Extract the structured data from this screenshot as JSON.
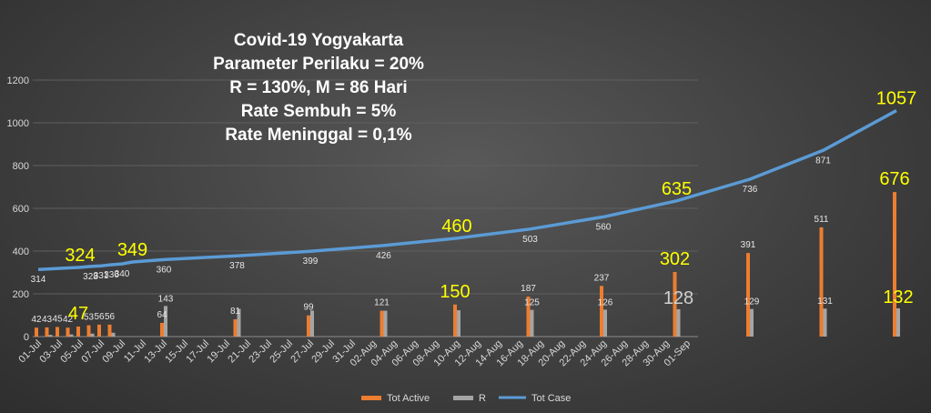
{
  "chart_data": {
    "type": "bar",
    "title_lines": [
      "Covid-19 Yogyakarta",
      "Parameter Perilaku = 20%",
      "R = 130%, M = 86 Hari",
      "Rate Sembuh = 5%",
      "Rate Meninggal = 0,1%"
    ],
    "ylim": [
      0,
      1200
    ],
    "yticks": [
      0,
      200,
      400,
      600,
      800,
      1000,
      1200
    ],
    "grid": true,
    "legend_position": "bottom",
    "colors": {
      "active": "#ED7D31",
      "r": "#A5A5A5",
      "total": "#5B9BD5",
      "highlight": "#FFFF00"
    },
    "x_labels": [
      "01-Jul",
      "03-Jul",
      "05-Jul",
      "07-Jul",
      "09-Jul",
      "11-Jul",
      "13-Jul",
      "15-Jul",
      "17-Jul",
      "19-Jul",
      "21-Jul",
      "23-Jul",
      "25-Jul",
      "27-Jul",
      "29-Jul",
      "31-Jul",
      "02-Aug",
      "04-Aug",
      "06-Aug",
      "08-Aug",
      "10-Aug",
      "12-Aug",
      "14-Aug",
      "16-Aug",
      "18-Aug",
      "20-Aug",
      "22-Aug",
      "24-Aug",
      "26-Aug",
      "28-Aug",
      "30-Aug",
      "01-Sep"
    ],
    "series": [
      {
        "name": "Tot Active",
        "type": "bar",
        "points": [
          {
            "day": 0,
            "value": 42
          },
          {
            "day": 1,
            "value": 43
          },
          {
            "day": 2,
            "value": 45
          },
          {
            "day": 3,
            "value": 42
          },
          {
            "day": 4,
            "value": 47
          },
          {
            "day": 5,
            "value": 53
          },
          {
            "day": 6,
            "value": 56
          },
          {
            "day": 7,
            "value": 56
          },
          {
            "day": 12,
            "value": 64
          },
          {
            "day": 19,
            "value": 81
          },
          {
            "day": 26,
            "value": 99
          },
          {
            "day": 33,
            "value": 121
          },
          {
            "day": 40,
            "value": 150
          },
          {
            "day": 47,
            "value": 187
          },
          {
            "day": 54,
            "value": 237
          },
          {
            "day": 61,
            "value": 302
          },
          {
            "day": 68,
            "value": 391
          },
          {
            "day": 75,
            "value": 511
          },
          {
            "day": 82,
            "value": 676
          }
        ]
      },
      {
        "name": "R",
        "type": "bar",
        "points": [
          {
            "day": 1,
            "value": 8
          },
          {
            "day": 3,
            "value": 10
          },
          {
            "day": 5,
            "value": 14
          },
          {
            "day": 7,
            "value": 18
          },
          {
            "day": 12,
            "value": 143
          },
          {
            "day": 19,
            "value": 130
          },
          {
            "day": 26,
            "value": 122
          },
          {
            "day": 33,
            "value": 121
          },
          {
            "day": 40,
            "value": 123
          },
          {
            "day": 47,
            "value": 125
          },
          {
            "day": 54,
            "value": 126
          },
          {
            "day": 61,
            "value": 128
          },
          {
            "day": 68,
            "value": 129
          },
          {
            "day": 75,
            "value": 131
          },
          {
            "day": 82,
            "value": 132
          }
        ]
      },
      {
        "name": "Tot Case",
        "type": "line",
        "points": [
          {
            "day": 0,
            "value": 314
          },
          {
            "day": 4,
            "value": 324
          },
          {
            "day": 5,
            "value": 328
          },
          {
            "day": 6,
            "value": 331
          },
          {
            "day": 7,
            "value": 336
          },
          {
            "day": 8,
            "value": 340
          },
          {
            "day": 9,
            "value": 349
          },
          {
            "day": 12,
            "value": 360
          },
          {
            "day": 19,
            "value": 378
          },
          {
            "day": 26,
            "value": 399
          },
          {
            "day": 33,
            "value": 426
          },
          {
            "day": 40,
            "value": 460
          },
          {
            "day": 47,
            "value": 503
          },
          {
            "day": 54,
            "value": 560
          },
          {
            "day": 61,
            "value": 635
          },
          {
            "day": 68,
            "value": 736
          },
          {
            "day": 75,
            "value": 871
          },
          {
            "day": 82,
            "value": 1057
          }
        ]
      }
    ],
    "labels": [
      {
        "text": "42",
        "day": 0,
        "value": 42,
        "series": "active"
      },
      {
        "text": "43",
        "day": 1,
        "value": 43,
        "series": "active"
      },
      {
        "text": "45",
        "day": 2,
        "value": 45,
        "series": "active"
      },
      {
        "text": "42",
        "day": 3,
        "value": 42,
        "series": "active"
      },
      {
        "text": "47",
        "day": 4,
        "value": 47,
        "series": "active",
        "highlight": true
      },
      {
        "text": "53",
        "day": 5,
        "value": 53,
        "series": "active"
      },
      {
        "text": "56",
        "day": 6,
        "value": 56,
        "series": "active"
      },
      {
        "text": "56",
        "day": 7,
        "value": 56,
        "series": "active"
      },
      {
        "text": "64",
        "day": 12,
        "value": 64,
        "series": "active"
      },
      {
        "text": "143",
        "day": 12,
        "value": 143,
        "series": "r"
      },
      {
        "text": "81",
        "day": 19,
        "value": 81,
        "series": "active"
      },
      {
        "text": "99",
        "day": 26,
        "value": 99,
        "series": "active"
      },
      {
        "text": "121",
        "day": 33,
        "value": 121,
        "series": "active"
      },
      {
        "text": "150",
        "day": 40,
        "value": 150,
        "series": "active",
        "highlight": true
      },
      {
        "text": "187",
        "day": 47,
        "value": 187,
        "series": "active"
      },
      {
        "text": "125",
        "day": 47,
        "value": 125,
        "series": "r"
      },
      {
        "text": "237",
        "day": 54,
        "value": 237,
        "series": "active"
      },
      {
        "text": "126",
        "day": 54,
        "value": 126,
        "series": "r"
      },
      {
        "text": "302",
        "day": 61,
        "value": 302,
        "series": "active",
        "highlight": true
      },
      {
        "text": "128",
        "day": 61,
        "value": 128,
        "series": "r",
        "big": true
      },
      {
        "text": "391",
        "day": 68,
        "value": 391,
        "series": "active"
      },
      {
        "text": "129",
        "day": 68,
        "value": 129,
        "series": "r"
      },
      {
        "text": "511",
        "day": 75,
        "value": 511,
        "series": "active"
      },
      {
        "text": "131",
        "day": 75,
        "value": 131,
        "series": "r"
      },
      {
        "text": "676",
        "day": 82,
        "value": 676,
        "series": "active",
        "highlight": true
      },
      {
        "text": "132",
        "day": 82,
        "value": 132,
        "series": "r",
        "highlight": true
      },
      {
        "text": "314",
        "day": 0,
        "value": 314,
        "series": "total"
      },
      {
        "text": "324",
        "day": 4,
        "value": 324,
        "series": "total",
        "highlight": true
      },
      {
        "text": "328",
        "day": 5,
        "value": 328,
        "series": "total"
      },
      {
        "text": "331",
        "day": 6,
        "value": 331,
        "series": "total"
      },
      {
        "text": "336",
        "day": 7,
        "value": 336,
        "series": "total"
      },
      {
        "text": "340",
        "day": 8,
        "value": 340,
        "series": "total"
      },
      {
        "text": "349",
        "day": 9,
        "value": 349,
        "series": "total",
        "highlight": true
      },
      {
        "text": "360",
        "day": 12,
        "value": 360,
        "series": "total"
      },
      {
        "text": "378",
        "day": 19,
        "value": 378,
        "series": "total"
      },
      {
        "text": "399",
        "day": 26,
        "value": 399,
        "series": "total"
      },
      {
        "text": "426",
        "day": 33,
        "value": 426,
        "series": "total"
      },
      {
        "text": "460",
        "day": 40,
        "value": 460,
        "series": "total",
        "highlight": true
      },
      {
        "text": "503",
        "day": 47,
        "value": 503,
        "series": "total"
      },
      {
        "text": "560",
        "day": 54,
        "value": 560,
        "series": "total"
      },
      {
        "text": "635",
        "day": 61,
        "value": 635,
        "series": "total",
        "highlight": true
      },
      {
        "text": "736",
        "day": 68,
        "value": 736,
        "series": "total"
      },
      {
        "text": "871",
        "day": 75,
        "value": 871,
        "series": "total"
      },
      {
        "text": "1057",
        "day": 82,
        "value": 1057,
        "series": "total",
        "highlight": true
      }
    ]
  }
}
